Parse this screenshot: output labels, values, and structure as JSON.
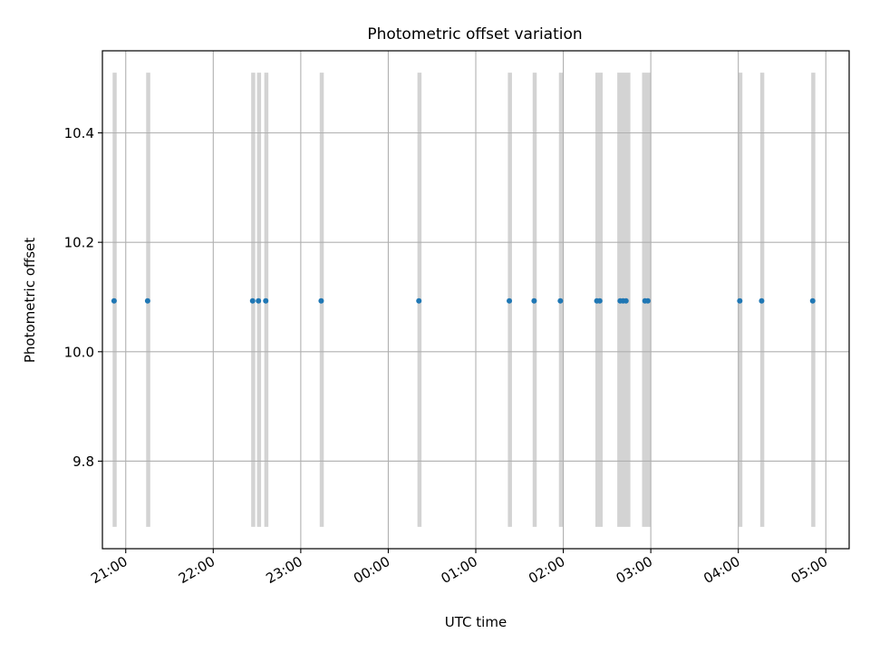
{
  "chart_data": {
    "type": "scatter",
    "title": "Photometric offset variation",
    "xlabel": "UTC time",
    "ylabel": "Photometric offset",
    "grid": true,
    "legend": "none",
    "xlim": [
      "20:44",
      "05:16"
    ],
    "ylim": [
      9.64,
      10.55
    ],
    "x_ticks": [
      "21:00",
      "22:00",
      "23:00",
      "00:00",
      "01:00",
      "02:00",
      "03:00",
      "04:00",
      "05:00"
    ],
    "y_ticks": [
      9.8,
      10.0,
      10.2,
      10.4
    ],
    "y_tick_labels": [
      "9.8",
      "10.0",
      "10.2",
      "10.4"
    ],
    "series": [
      {
        "color": "#1f77b4",
        "x": [
          "20:52",
          "21:15",
          "22:27",
          "22:31",
          "22:36",
          "23:14",
          "00:21",
          "01:23",
          "01:40",
          "01:58",
          "02:23",
          "02:25",
          "02:39",
          "02:41",
          "02:43",
          "02:56",
          "02:58",
          "04:01",
          "04:16",
          "04:51"
        ],
        "y": [
          10.093,
          10.093,
          10.093,
          10.093,
          10.093,
          10.093,
          10.093,
          10.093,
          10.093,
          10.093,
          10.093,
          10.093,
          10.093,
          10.093,
          10.093,
          10.093,
          10.093,
          10.093,
          10.093,
          10.093
        ]
      }
    ],
    "shaded_intervals": {
      "color": "#d3d3d3",
      "y_range": [
        9.68,
        10.51
      ],
      "intervals": [
        [
          "20:51",
          "20:53"
        ],
        [
          "21:14",
          "21:16"
        ],
        [
          "22:26",
          "22:28"
        ],
        [
          "22:30",
          "22:32"
        ],
        [
          "22:35",
          "22:37"
        ],
        [
          "23:13",
          "23:15"
        ],
        [
          "00:20",
          "00:22"
        ],
        [
          "01:22",
          "01:24"
        ],
        [
          "01:39",
          "01:41"
        ],
        [
          "01:57",
          "01:59"
        ],
        [
          "02:22",
          "02:27"
        ],
        [
          "02:37",
          "02:46"
        ],
        [
          "02:54",
          "03:00"
        ],
        [
          "04:00",
          "04:02"
        ],
        [
          "04:15",
          "04:17"
        ],
        [
          "04:50",
          "04:52"
        ]
      ]
    }
  }
}
